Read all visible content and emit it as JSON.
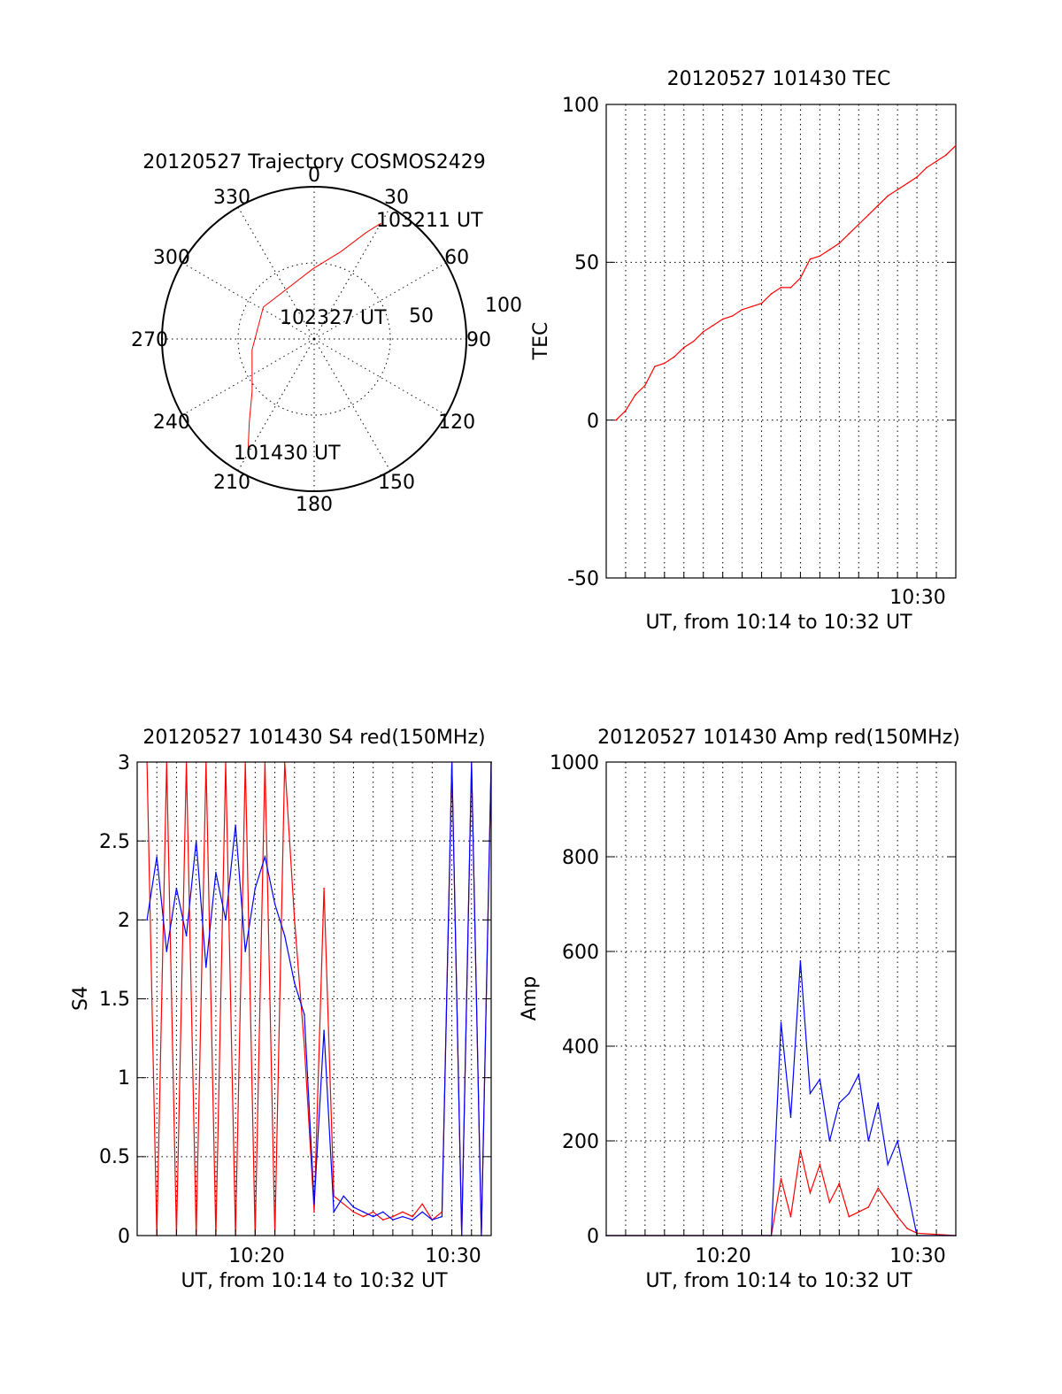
{
  "colors": {
    "red": "#ff0000",
    "blue": "#0000ff",
    "axis": "#000000"
  },
  "chart_data": [
    {
      "type": "polar",
      "title": "20120527 Trajectory COSMOS2429",
      "azimuth_labels": [
        "0",
        "30",
        "60",
        "90",
        "120",
        "150",
        "180",
        "210",
        "240",
        "270",
        "300",
        "330"
      ],
      "radial_labels": [
        "50",
        "100"
      ],
      "annotations": [
        "103211 UT",
        "102327 UT",
        "101430 UT"
      ],
      "trajectory": {
        "color": "red",
        "points": [
          {
            "azimuth": 211,
            "zenith": 75.8
          },
          {
            "azimuth": 218,
            "zenith": 62.3
          },
          {
            "azimuth": 230,
            "zenith": 47.9
          },
          {
            "azimuth": 260,
            "zenith": 37.3
          },
          {
            "azimuth": 302,
            "zenith": 35.5
          },
          {
            "azimuth": 359,
            "zenith": 41.5
          },
          {
            "azimuth": 17,
            "zenith": 54.0
          },
          {
            "azimuth": 26,
            "zenith": 70.0
          },
          {
            "azimuth": 30,
            "zenith": 79.0
          }
        ]
      }
    },
    {
      "type": "line",
      "title": "20120527 101430 TEC",
      "xlabel": "UT, from 10:14 to 10:32 UT",
      "ylabel": "TEC",
      "xlim": [
        "10:14",
        "10:32"
      ],
      "ylim": [
        -50,
        100
      ],
      "yticks": [
        "100",
        "50",
        "0",
        "-50"
      ],
      "xticks": [
        "10:30"
      ],
      "series": [
        {
          "color": "red",
          "x": [
            "10:14:30",
            "10:15:00",
            "10:15:30",
            "10:16:00",
            "10:16:30",
            "10:17:00",
            "10:17:30",
            "10:18:00",
            "10:18:30",
            "10:19:00",
            "10:19:30",
            "10:20:00",
            "10:20:30",
            "10:21:00",
            "10:21:30",
            "10:22:00",
            "10:22:30",
            "10:23:00",
            "10:23:30",
            "10:24:00",
            "10:24:30",
            "10:25:00",
            "10:25:30",
            "10:26:00",
            "10:26:30",
            "10:27:00",
            "10:27:30",
            "10:28:00",
            "10:28:30",
            "10:29:00",
            "10:29:30",
            "10:30:00",
            "10:30:30",
            "10:31:00",
            "10:31:30",
            "10:32:00"
          ],
          "y": [
            0,
            3,
            8,
            11,
            17,
            18,
            20,
            23,
            25,
            28,
            30,
            32,
            33,
            35,
            36,
            37,
            40,
            42,
            42,
            45,
            51,
            52,
            54,
            56,
            59,
            62,
            65,
            68,
            71,
            73,
            75,
            77,
            80,
            82,
            84,
            87
          ]
        }
      ]
    },
    {
      "type": "line",
      "title": "20120527 101430 S4 red(150MHz)",
      "xlabel": "UT, from 10:14 to 10:32 UT",
      "ylabel": "S4",
      "xlim": [
        "10:14",
        "10:32"
      ],
      "ylim": [
        0,
        3
      ],
      "yticks": [
        "3",
        "2.5",
        "2",
        "1.5",
        "1",
        "0.5",
        "0"
      ],
      "xticks": [
        "10:20",
        "10:30"
      ],
      "series": [
        {
          "color": "red",
          "x": [
            "10:14:30",
            "10:15:00",
            "10:15:30",
            "10:16:00",
            "10:16:30",
            "10:17:00",
            "10:17:30",
            "10:18:00",
            "10:18:30",
            "10:19:00",
            "10:19:30",
            "10:20:00",
            "10:20:30",
            "10:21:00",
            "10:21:30",
            "10:22:00",
            "10:22:30",
            "10:23:00",
            "10:23:30",
            "10:24:00",
            "10:24:30",
            "10:25:00",
            "10:25:30",
            "10:26:00",
            "10:26:30",
            "10:27:00",
            "10:27:30",
            "10:28:00",
            "10:28:30",
            "10:29:00",
            "10:29:30",
            "10:30:00",
            "10:30:30",
            "10:31:00",
            "10:31:30",
            "10:32:00"
          ],
          "y": [
            3,
            0,
            3,
            0,
            3,
            0,
            3,
            0,
            3,
            0,
            3,
            0,
            3,
            0,
            3,
            2,
            1.2,
            0.15,
            2.2,
            0.25,
            0.2,
            0.15,
            0.12,
            0.15,
            0.1,
            0.12,
            0.15,
            0.12,
            0.2,
            0.1,
            0.15,
            3,
            0,
            3,
            0,
            3
          ]
        },
        {
          "color": "blue",
          "x": [
            "10:14:30",
            "10:15:00",
            "10:15:30",
            "10:16:00",
            "10:16:30",
            "10:17:00",
            "10:17:30",
            "10:18:00",
            "10:18:30",
            "10:19:00",
            "10:19:30",
            "10:20:00",
            "10:20:30",
            "10:21:00",
            "10:21:30",
            "10:22:00",
            "10:22:30",
            "10:23:00",
            "10:23:30",
            "10:24:00",
            "10:24:30",
            "10:25:00",
            "10:25:30",
            "10:26:00",
            "10:26:30",
            "10:27:00",
            "10:27:30",
            "10:28:00",
            "10:28:30",
            "10:29:00",
            "10:29:30",
            "10:30:00",
            "10:30:30",
            "10:31:00",
            "10:31:30",
            "10:32:00"
          ],
          "y": [
            2.0,
            2.4,
            1.8,
            2.2,
            1.9,
            2.5,
            1.7,
            2.3,
            2.0,
            2.6,
            1.8,
            2.2,
            2.4,
            2.1,
            1.9,
            1.6,
            1.4,
            0.2,
            1.3,
            0.15,
            0.25,
            0.18,
            0.15,
            0.12,
            0.15,
            0.1,
            0.12,
            0.1,
            0.15,
            0.1,
            0.12,
            3,
            0,
            3,
            0,
            3
          ]
        }
      ]
    },
    {
      "type": "line",
      "title": "20120527 101430 Amp red(150MHz)",
      "xlabel": "UT, from 10:14 to 10:32 UT",
      "ylabel": "Amp",
      "xlim": [
        "10:14",
        "10:32"
      ],
      "ylim": [
        0,
        1000
      ],
      "yticks": [
        "1000",
        "800",
        "600",
        "400",
        "200",
        "0"
      ],
      "xticks": [
        "10:20",
        "10:30"
      ],
      "series": [
        {
          "color": "red",
          "x": [
            "10:14:00",
            "10:22:30",
            "10:23:00",
            "10:23:30",
            "10:24:00",
            "10:24:30",
            "10:25:00",
            "10:25:30",
            "10:26:00",
            "10:26:30",
            "10:27:00",
            "10:27:30",
            "10:28:00",
            "10:28:30",
            "10:29:00",
            "10:29:30",
            "10:30:00",
            "10:32:00"
          ],
          "y": [
            0,
            0,
            120,
            40,
            180,
            90,
            150,
            70,
            110,
            40,
            50,
            60,
            100,
            70,
            40,
            15,
            5,
            0
          ]
        },
        {
          "color": "blue",
          "x": [
            "10:14:00",
            "10:22:30",
            "10:23:00",
            "10:23:30",
            "10:24:00",
            "10:24:30",
            "10:25:00",
            "10:25:30",
            "10:26:00",
            "10:26:30",
            "10:27:00",
            "10:27:30",
            "10:28:00",
            "10:28:30",
            "10:29:00",
            "10:29:30",
            "10:30:00",
            "10:32:00"
          ],
          "y": [
            0,
            0,
            450,
            250,
            580,
            300,
            330,
            200,
            280,
            300,
            340,
            200,
            280,
            150,
            200,
            100,
            0,
            0
          ]
        }
      ]
    }
  ]
}
